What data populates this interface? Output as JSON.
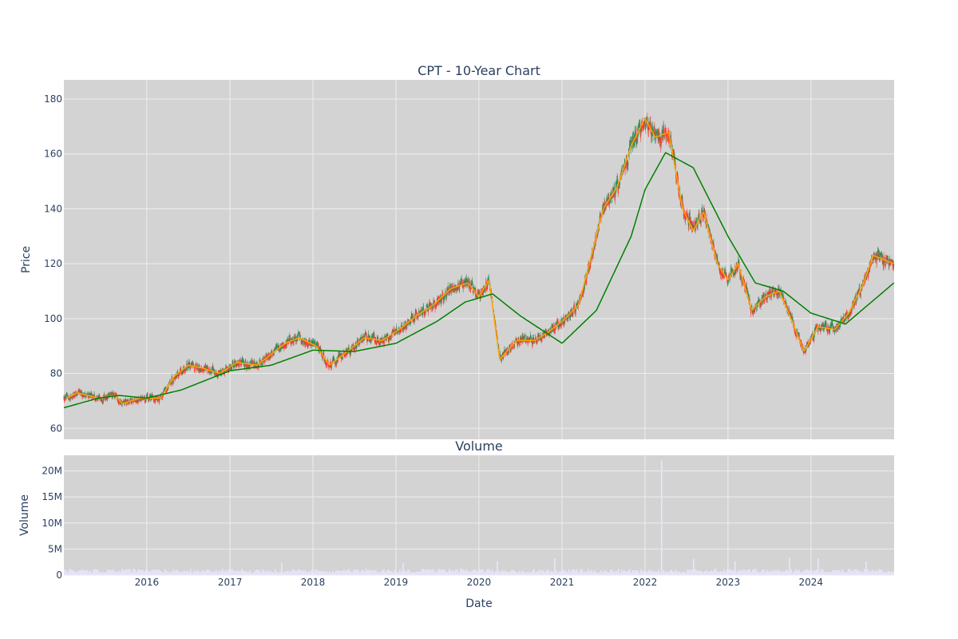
{
  "chart_data": [
    {
      "type": "candlestick",
      "title": "CPT - 10-Year Chart",
      "xlabel": "",
      "ylabel": "Price",
      "ylim": [
        56,
        187
      ],
      "y_ticks": [
        "60",
        "80",
        "100",
        "120",
        "140",
        "160",
        "180"
      ],
      "x_range": [
        "2015-01-01",
        "2025-01-01"
      ],
      "grid": true,
      "up_color": "#2e8b57",
      "down_color": "#ff3b30",
      "background": "#d3d3d3",
      "gridline_color": "#eeeeee",
      "series": [
        {
          "name": "",
          "color": "#ffa500",
          "points": [
            [
              "2015-01-15",
              71
            ],
            [
              "2015-03-01",
              73
            ],
            [
              "2015-06-01",
              71
            ],
            [
              "2015-08-15",
              72
            ],
            [
              "2015-09-15",
              69
            ],
            [
              "2015-12-01",
              71
            ],
            [
              "2016-03-01",
              71
            ],
            [
              "2016-05-01",
              79
            ],
            [
              "2016-07-01",
              83
            ],
            [
              "2016-09-01",
              82
            ],
            [
              "2016-11-15",
              80
            ],
            [
              "2017-02-01",
              84
            ],
            [
              "2017-05-01",
              83
            ],
            [
              "2017-07-01",
              87
            ],
            [
              "2017-09-01",
              91
            ],
            [
              "2017-11-01",
              93
            ],
            [
              "2018-01-15",
              90
            ],
            [
              "2018-03-15",
              83
            ],
            [
              "2018-06-01",
              88
            ],
            [
              "2018-08-15",
              93
            ],
            [
              "2018-11-01",
              92
            ],
            [
              "2019-01-15",
              96
            ],
            [
              "2019-04-01",
              101
            ],
            [
              "2019-06-15",
              105
            ],
            [
              "2019-09-01",
              111
            ],
            [
              "2019-11-15",
              113
            ],
            [
              "2020-01-01",
              108
            ],
            [
              "2020-02-15",
              114
            ],
            [
              "2020-04-01",
              85
            ],
            [
              "2020-06-15",
              92
            ],
            [
              "2020-09-01",
              92
            ],
            [
              "2020-11-01",
              95
            ],
            [
              "2021-01-15",
              100
            ],
            [
              "2021-03-15",
              105
            ],
            [
              "2021-05-01",
              120
            ],
            [
              "2021-07-01",
              140
            ],
            [
              "2021-09-01",
              148
            ],
            [
              "2021-11-01",
              163
            ],
            [
              "2022-01-01",
              173
            ],
            [
              "2022-02-15",
              166
            ],
            [
              "2022-04-15",
              168
            ],
            [
              "2022-06-15",
              140
            ],
            [
              "2022-08-01",
              132
            ],
            [
              "2022-09-15",
              139
            ],
            [
              "2022-11-15",
              120
            ],
            [
              "2023-01-01",
              114
            ],
            [
              "2023-02-15",
              120
            ],
            [
              "2023-04-15",
              103
            ],
            [
              "2023-06-15",
              108
            ],
            [
              "2023-08-15",
              110
            ],
            [
              "2023-10-15",
              98
            ],
            [
              "2023-12-01",
              88
            ],
            [
              "2024-02-01",
              97
            ],
            [
              "2024-04-15",
              96
            ],
            [
              "2024-06-15",
              102
            ],
            [
              "2024-08-15",
              112
            ],
            [
              "2024-10-01",
              123
            ],
            [
              "2024-12-31",
              120
            ]
          ]
        },
        {
          "name": "",
          "color": "#008000",
          "points": [
            [
              "2015-01-01",
              67.5
            ],
            [
              "2015-06-01",
              71
            ],
            [
              "2015-09-01",
              72
            ],
            [
              "2016-01-01",
              71
            ],
            [
              "2016-06-01",
              74
            ],
            [
              "2017-01-01",
              81
            ],
            [
              "2017-07-01",
              83
            ],
            [
              "2018-01-01",
              88.5
            ],
            [
              "2018-07-01",
              88
            ],
            [
              "2019-01-01",
              91
            ],
            [
              "2019-07-01",
              99
            ],
            [
              "2019-11-01",
              106
            ],
            [
              "2020-03-01",
              109
            ],
            [
              "2020-07-01",
              101
            ],
            [
              "2021-01-01",
              91
            ],
            [
              "2021-06-01",
              103
            ],
            [
              "2021-11-01",
              130
            ],
            [
              "2022-01-01",
              147
            ],
            [
              "2022-04-01",
              160.5
            ],
            [
              "2022-08-01",
              155
            ],
            [
              "2023-01-01",
              130
            ],
            [
              "2023-05-01",
              113
            ],
            [
              "2023-09-01",
              110
            ],
            [
              "2024-01-01",
              102
            ],
            [
              "2024-06-01",
              98
            ],
            [
              "2024-12-31",
              113
            ]
          ]
        }
      ]
    },
    {
      "type": "bar",
      "title": "Volume",
      "xlabel": "Date",
      "ylabel": "Volume",
      "ylim": [
        0,
        23000000
      ],
      "y_ticks": [
        "0",
        "5M",
        "10M",
        "15M",
        "20M"
      ],
      "x_ticks": [
        "2016",
        "2017",
        "2018",
        "2019",
        "2020",
        "2021",
        "2022",
        "2023",
        "2024"
      ],
      "bar_color": "#e6e6fa",
      "typical_volume": 800000,
      "spikes": [
        [
          "2017-08-15",
          2400000
        ],
        [
          "2019-02-01",
          2300000
        ],
        [
          "2020-03-20",
          2700000
        ],
        [
          "2020-12-01",
          3200000
        ],
        [
          "2022-03-18",
          22000000
        ],
        [
          "2022-08-01",
          3100000
        ],
        [
          "2023-02-01",
          2700000
        ],
        [
          "2023-10-01",
          3400000
        ],
        [
          "2024-02-01",
          3200000
        ],
        [
          "2024-09-01",
          2600000
        ]
      ]
    }
  ]
}
